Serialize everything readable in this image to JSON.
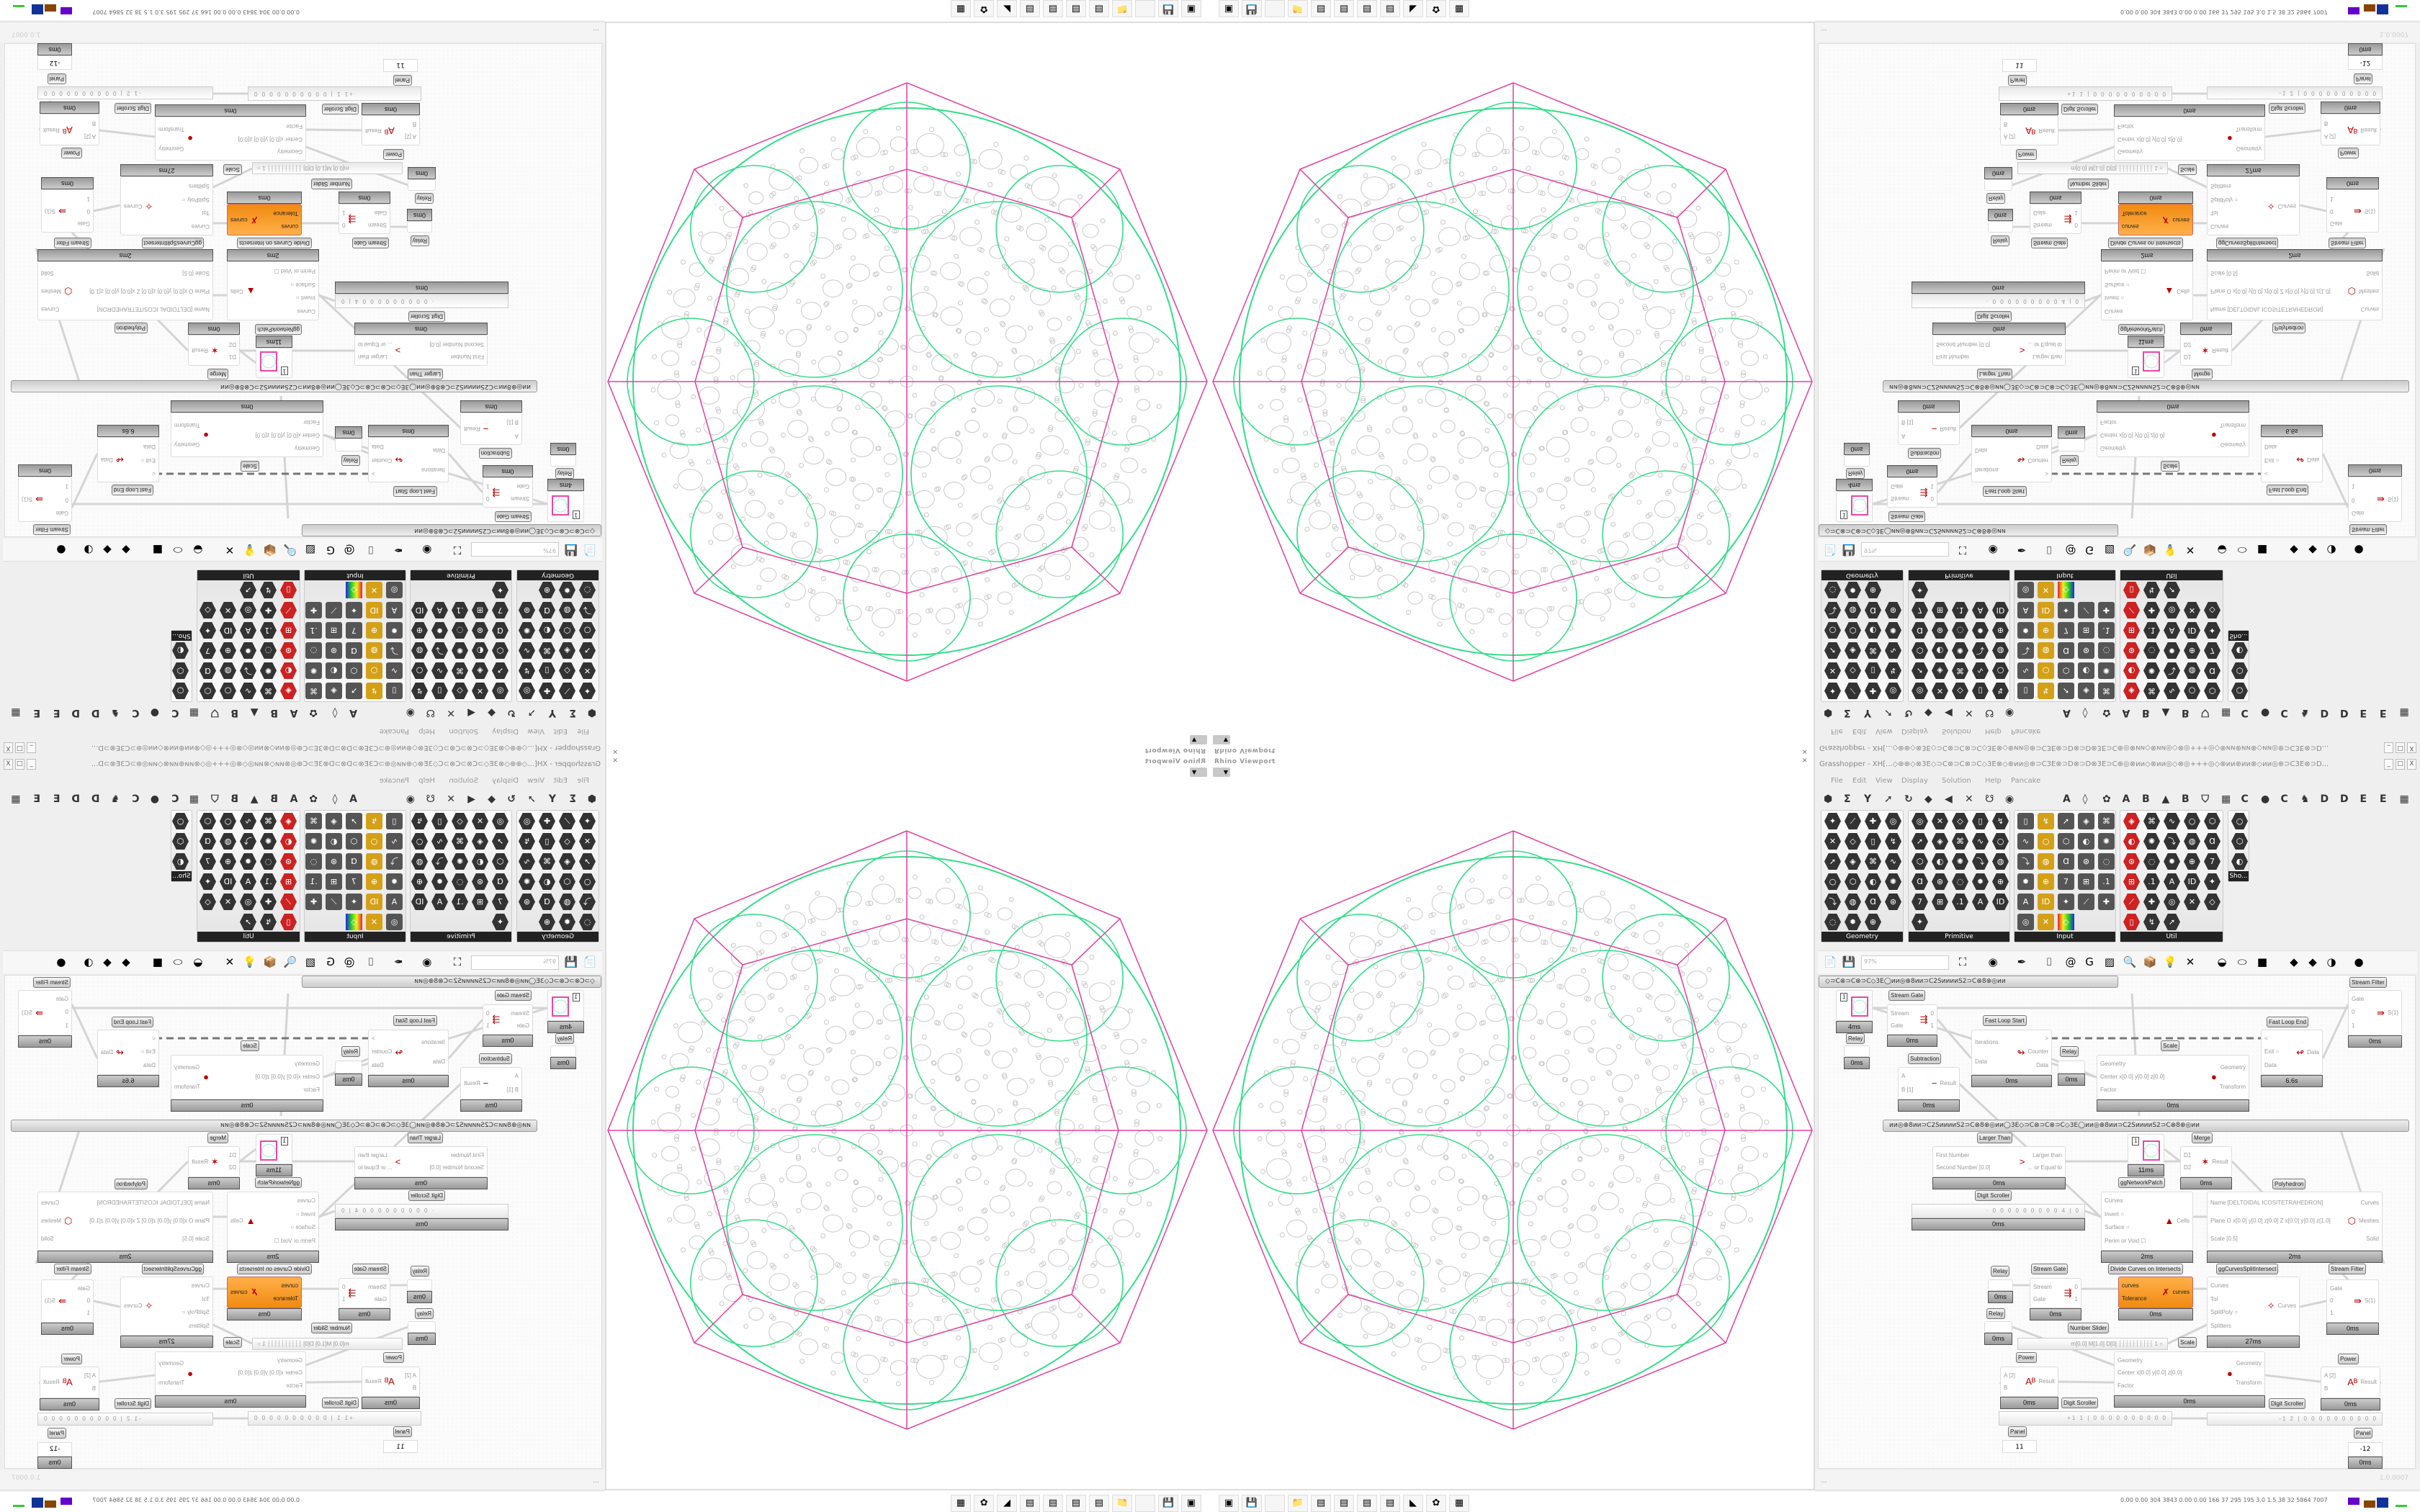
{
  "viewport": {
    "title": "Rhino Viewport",
    "close_icon": "close-icon",
    "dropdown_icon": "chevron-down-icon",
    "colors": {
      "outline": "#e040a0",
      "network": "#33dd88",
      "circles": "#c8c8c8"
    },
    "taskbar_icons": [
      "rhino-launcher-icon",
      "save-64-icon",
      "blank-icon",
      "folder-icon",
      "notepad-icon",
      "notepad-icon",
      "notepad-icon",
      "notepad-icon",
      "rhino-icon",
      "red-app-icon",
      "calculator-icon"
    ]
  },
  "grasshopper": {
    "title": "Grasshopper - XH[...◇⊕⊕◇⊗3E◇⊃C⊗⊃C⊗⊃C◇3E⊗◇⊕ᴎᴎ◎⊕⊃C3E⊗⊃D⊗⊃D⊗3E⊃C⊕◎⊗ᴎᴎ◇⊗ᴎᴎ◎◇⊗◎+++◎◇⊗ᴎᴎ⊕ᴎᴎ⊗◇ᴎᴎ◎⊕⊃C3E⊗⊃D...",
    "window_buttons": [
      "_",
      "□",
      "X"
    ],
    "menu": [
      "File",
      "Edit",
      "View",
      "Display",
      "Solution",
      "Help",
      "Pancake"
    ],
    "tab_glyphs": [
      "⬢",
      "Σ",
      "Y",
      "➚",
      "↻",
      "◆",
      "◀",
      "✕",
      "☋",
      "◉",
      "A",
      "◊",
      "✿",
      "A",
      "B",
      "▲",
      "B",
      "⛉",
      "▦",
      "C",
      "●",
      "C",
      "♞",
      "D",
      "D",
      "E",
      "E",
      "▦"
    ],
    "panels": [
      {
        "label": "Geometry",
        "icon_count": 23
      },
      {
        "label": "Primitive",
        "icon_count": 26
      },
      {
        "label": "Input",
        "icon_count": 28
      },
      {
        "label": "Util",
        "icon_count": 28
      },
      {
        "label": "Sho...",
        "icon_count": 3
      }
    ],
    "toolbar": {
      "zoom_value": "97%",
      "icons": [
        "open-file-icon",
        "save-icon",
        "zoom-extents-icon",
        "preview-eye-icon",
        "sketch-pen-icon",
        "bracket-icon",
        "at-icon",
        "gha-icon",
        "picture-icon",
        "search-icon",
        "package-icon",
        "bulb-icon",
        "wire-icon",
        "shaded-icon",
        "wire-preview-icon",
        "red-box-icon",
        "teal-icon",
        "green-icon",
        "orange-sphere-icon",
        "blue-sphere-icon"
      ]
    },
    "canvas": {
      "group_bar_1": "◇⊃C⊗⊃C⊗⊃C◇3E◯ᴎᴎ◎⊕8ᴎᴎ⊃C2SᴎᴎᴎᴎS2⊃C⊗8⊕◎ᴎᴎ",
      "group_bar_2": "ᴎᴎ◎⊕8ᴎᴎ⊃C2SᴎᴎᴎᴎS2⊃C⊗8⊕◎ᴎᴎ◯3E◇⊃C⊗⊃C⊗⊃C◇3E◯ᴎᴎ◎⊕8ᴎᴎ⊃C2SᴎᴎᴎᴎS2⊃C⊗8⊕◎ᴎᴎ",
      "components": [
        {
          "label": "",
          "kind": "param",
          "value": "1",
          "time": "4ms"
        },
        {
          "label": "Relay",
          "kind": "relay",
          "time": "0ms"
        },
        {
          "label": "Stream Gate",
          "inputs": [
            "Stream",
            "Gate"
          ],
          "outputs": [
            "0",
            "1"
          ],
          "glyph": "⇶",
          "time": "0ms"
        },
        {
          "label": "Subtraction",
          "inputs": [
            "A",
            "B [1]"
          ],
          "outputs": [
            "Result"
          ],
          "glyph": "−",
          "time": "0ms"
        },
        {
          "label": "Fast Loop Start",
          "inputs": [
            "Iterations",
            "Data"
          ],
          "outputs": [
            ">",
            "Counter",
            "Data"
          ],
          "glyph": "↬",
          "time": "0ms"
        },
        {
          "label": "Relay",
          "kind": "relay",
          "time": "0ms"
        },
        {
          "label": "Scale",
          "inputs": [
            "Geometry",
            "Center x[0.0] y[0.0] z[0.0]",
            "Factor"
          ],
          "outputs": [
            "Geometry",
            "Transform"
          ],
          "glyph": "●",
          "time": "0ms"
        },
        {
          "label": "Fast Loop End",
          "inputs": [
            "<",
            "Exit ○",
            "Data"
          ],
          "outputs": [
            "Data"
          ],
          "glyph": "↫",
          "time": "6.6s"
        },
        {
          "label": "Stream Filter",
          "inputs": [
            "Gate",
            "0",
            "1"
          ],
          "outputs": [
            "S(1)"
          ],
          "glyph": "⇛",
          "time": "0ms"
        },
        {
          "label": "Larger Than",
          "inputs": [
            "First Number",
            "Second Number [0.0]"
          ],
          "outputs": [
            "Larger than",
            "... or Equal to"
          ],
          "glyph": ">",
          "time": "0ms"
        },
        {
          "label": "Digit Scroller",
          "kind": "scroller",
          "value": "· 0 0 0 0 0 0 0 0 0 4 | 0",
          "time": "0ms"
        },
        {
          "label": "",
          "kind": "param",
          "value": "1",
          "time": "11ms"
        },
        {
          "label": "ggNetworkPatch",
          "inputs": [
            "Curves",
            "Invert ○",
            "Surface ○",
            "Perim or Void ☐"
          ],
          "outputs": [
            "Cells"
          ],
          "glyph": "▲",
          "time": "2ms"
        },
        {
          "label": "Merge",
          "inputs": [
            "D1",
            "D2"
          ],
          "outputs": [
            "Result"
          ],
          "glyph": "✶",
          "time": "0ms"
        },
        {
          "label": "Polyhedron",
          "inputs": [
            "Name [DELTOIDAL ICOSITETRAHEDRON]",
            "Plane  O x[0.0] y[0.0] z[0.0]  Z x[0.0] y[0.0] z[1.0]",
            "Scale [0.5]"
          ],
          "outputs": [
            "Curves",
            "Meshes",
            "Solid"
          ],
          "glyph": "⬡",
          "time": "2ms"
        },
        {
          "label": "Relay",
          "kind": "relay",
          "time": "0ms"
        },
        {
          "label": "Relay",
          "kind": "relay",
          "time": "0ms"
        },
        {
          "label": "Stream Gate",
          "inputs": [
            "Stream",
            "Gate"
          ],
          "outputs": [
            "0",
            "1"
          ],
          "glyph": "⇶",
          "time": "0ms"
        },
        {
          "label": "Divide Curves on Intersects",
          "kind": "orange",
          "inputs": [
            "curves",
            "Tolerance"
          ],
          "outputs": [
            "curves"
          ],
          "glyph": "✗",
          "time": "0ms"
        },
        {
          "label": "ggCurvesSplitIntersect",
          "inputs": [
            "Curves",
            "Tol",
            "SplitPoly ○",
            "Splitters"
          ],
          "outputs": [
            "Curves"
          ],
          "glyph": "✧",
          "time": "27ms"
        },
        {
          "label": "Stream Filter",
          "inputs": [
            "Gate",
            "0",
            "1"
          ],
          "outputs": [
            "S(1)"
          ],
          "glyph": "⇛",
          "time": "0ms"
        },
        {
          "label": "Number Slider",
          "kind": "slider",
          "value": "m[0.0] M[1.0] D[0]  ┆┆┆┆┆┆┆┆┆┆ 1 ○"
        },
        {
          "label": "Scale",
          "inputs": [
            "Geometry",
            "Center x[0.0] y[0.0] z[0.0]",
            "Factor"
          ],
          "outputs": [
            "Geometry",
            "Transform"
          ],
          "glyph": "●",
          "time": "0ms"
        },
        {
          "label": "Power",
          "inputs": [
            "A [2]",
            "B"
          ],
          "outputs": [
            "Result"
          ],
          "glyph": "Aᴮ",
          "time": "0ms"
        },
        {
          "label": "Digit Scroller",
          "kind": "scroller",
          "value": "+1 1 | 0 0 0 0 0 0 0 0 0 0"
        },
        {
          "label": "Power",
          "inputs": [
            "A [2]",
            "B"
          ],
          "outputs": [
            "Result"
          ],
          "glyph": "Aᴮ",
          "time": "0ms"
        },
        {
          "label": "Digit Scroller",
          "kind": "scroller",
          "value": "-1 2 | 0 0 0 0 0 0 0 0 0 0"
        },
        {
          "label": "Panel",
          "kind": "panel",
          "value": "11"
        },
        {
          "label": "Panel",
          "kind": "panel",
          "value": "-12",
          "time": "0ms"
        }
      ]
    },
    "status": {
      "left": "...",
      "version": "1.0.0007"
    },
    "taskbar_numbers": "0.00 0.00 304 3843 0.00 0.00 166 37 295 195 3.0 1.5 38 32 5864 7007"
  }
}
